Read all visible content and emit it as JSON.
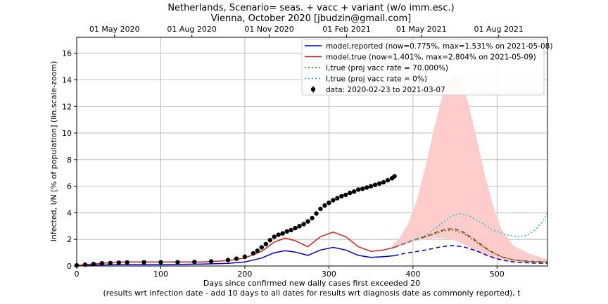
{
  "chart_data": {
    "type": "line",
    "title": "Netherlands, Scenario= seas. + vacc + variant (w/o imm.esc.)",
    "subtitle": "Vienna, October 2020 [jbudzin@gmail.com]",
    "xlabel": "Days since confirmed new daily cases first exceeded 20",
    "xlabel2": "(results wrt infection date - add 10 days to all dates for results wrt diagnosis date as commonly reported), t",
    "ylabel": "Infected, I/N [% of population] (lin.scale-zoom)",
    "xlim": [
      0,
      560
    ],
    "ylim": [
      0,
      17.2
    ],
    "x_ticks": [
      0,
      100,
      200,
      300,
      400,
      500
    ],
    "y_ticks": [
      0,
      2,
      4,
      6,
      8,
      10,
      12,
      14,
      16
    ],
    "top_axis": {
      "ticks": [
        {
          "x": 45,
          "label": "01 May 2020"
        },
        {
          "x": 137,
          "label": "01 Aug 2020"
        },
        {
          "x": 229,
          "label": "01 Nov 2020"
        },
        {
          "x": 321,
          "label": "01 Feb 2021"
        },
        {
          "x": 410,
          "label": "01 May 2021"
        },
        {
          "x": 502,
          "label": "01 Aug 2021"
        }
      ]
    },
    "grid": true,
    "legend_position": "top-right",
    "legend": [
      {
        "label": "model,reported (now=0.775%, max=1.531% on 2021-05-08)",
        "color": "#0000cc",
        "style": "solid"
      },
      {
        "label": "model,true (now=1.401%, max=2.804% on 2021-05-09)",
        "color": "#d62020",
        "style": "solid"
      },
      {
        "label": "I,true (proj vacc rate = 70.000%)",
        "color": "#00a000",
        "style": "dotted"
      },
      {
        "label": "I,true (proj vacc rate = 0%)",
        "color": "#17becf",
        "style": "dotted"
      },
      {
        "label": "data: 2020-02-23 to 2021-03-07",
        "color": "#000000",
        "style": "marker"
      }
    ],
    "band": {
      "color": "#ffcccc",
      "x": [
        375,
        385,
        395,
        405,
        415,
        425,
        435,
        445,
        450,
        455,
        465,
        475,
        485,
        495,
        505,
        520,
        540,
        560
      ],
      "upper": [
        1.5,
        2.2,
        3.3,
        5.0,
        7.5,
        10.3,
        12.8,
        14.1,
        14.3,
        14.0,
        12.5,
        9.8,
        7.0,
        4.6,
        2.8,
        1.5,
        0.9,
        0.5
      ],
      "lower": [
        1.3,
        1.5,
        1.7,
        1.9,
        2.0,
        2.1,
        2.1,
        2.0,
        1.9,
        1.8,
        1.5,
        1.1,
        0.8,
        0.55,
        0.4,
        0.3,
        0.25,
        0.2
      ]
    },
    "series": [
      {
        "key": "reported_hist",
        "color": "#0000cc",
        "style": "solid",
        "x": [
          0,
          50,
          100,
          150,
          180,
          200,
          220,
          235,
          248,
          260,
          275,
          290,
          305,
          320,
          335,
          350,
          365,
          378
        ],
        "y": [
          0.05,
          0.1,
          0.1,
          0.15,
          0.2,
          0.3,
          0.6,
          1.0,
          1.15,
          1.05,
          0.8,
          1.2,
          1.4,
          1.2,
          0.8,
          0.65,
          0.7,
          0.775
        ]
      },
      {
        "key": "reported_proj",
        "color": "#0000cc",
        "style": "dashed",
        "x": [
          378,
          390,
          400,
          415,
          430,
          440,
          448,
          460,
          475,
          490,
          505,
          520,
          540,
          560
        ],
        "y": [
          0.775,
          0.95,
          1.05,
          1.2,
          1.4,
          1.5,
          1.531,
          1.45,
          1.15,
          0.75,
          0.45,
          0.3,
          0.22,
          0.2
        ]
      },
      {
        "key": "true_hist",
        "color": "#d62020",
        "style": "solid",
        "x": [
          0,
          30,
          50,
          100,
          150,
          180,
          200,
          220,
          235,
          248,
          260,
          275,
          290,
          305,
          320,
          335,
          350,
          365,
          378
        ],
        "y": [
          0.05,
          0.2,
          0.3,
          0.3,
          0.3,
          0.4,
          0.6,
          1.1,
          1.8,
          2.1,
          1.9,
          1.45,
          2.2,
          2.55,
          2.2,
          1.45,
          1.1,
          1.2,
          1.401
        ]
      },
      {
        "key": "true_proj",
        "color": "#d62020",
        "style": "dashed",
        "x": [
          378,
          390,
          400,
          415,
          430,
          440,
          449,
          460,
          475,
          490,
          505,
          520,
          540,
          560
        ],
        "y": [
          1.401,
          1.7,
          1.95,
          2.2,
          2.6,
          2.78,
          2.804,
          2.55,
          1.9,
          1.2,
          0.7,
          0.45,
          0.35,
          0.3
        ]
      },
      {
        "key": "vacc70",
        "color": "#00a000",
        "style": "dotted",
        "x": [
          378,
          390,
          400,
          415,
          430,
          440,
          448,
          460,
          475,
          490,
          505,
          520,
          540,
          560
        ],
        "y": [
          1.45,
          1.7,
          1.95,
          2.2,
          2.5,
          2.68,
          2.7,
          2.45,
          1.8,
          1.15,
          0.7,
          0.45,
          0.32,
          0.3
        ]
      },
      {
        "key": "vacc0",
        "color": "#17becf",
        "style": "dotted",
        "x": [
          378,
          390,
          400,
          415,
          430,
          445,
          455,
          465,
          480,
          495,
          510,
          525,
          535,
          545,
          555,
          560
        ],
        "y": [
          1.45,
          1.7,
          1.95,
          2.3,
          3.0,
          3.7,
          3.95,
          3.85,
          3.3,
          2.7,
          2.35,
          2.2,
          2.3,
          2.7,
          3.4,
          4.0
        ]
      }
    ],
    "data_points": {
      "color": "#000000",
      "x": [
        0,
        10,
        20,
        30,
        40,
        50,
        60,
        80,
        100,
        120,
        140,
        160,
        180,
        190,
        200,
        210,
        215,
        220,
        225,
        230,
        235,
        240,
        245,
        250,
        255,
        260,
        265,
        270,
        275,
        280,
        285,
        290,
        295,
        300,
        305,
        310,
        315,
        320,
        325,
        330,
        335,
        340,
        345,
        350,
        355,
        360,
        365,
        370,
        375,
        378
      ],
      "y": [
        0.05,
        0.1,
        0.15,
        0.2,
        0.22,
        0.25,
        0.27,
        0.28,
        0.28,
        0.28,
        0.3,
        0.35,
        0.45,
        0.55,
        0.7,
        0.95,
        1.15,
        1.4,
        1.65,
        1.95,
        2.2,
        2.35,
        2.45,
        2.6,
        2.7,
        2.85,
        3.0,
        3.15,
        3.35,
        3.6,
        3.95,
        4.3,
        4.55,
        4.75,
        4.95,
        5.1,
        5.25,
        5.35,
        5.5,
        5.6,
        5.75,
        5.8,
        5.9,
        6.0,
        6.1,
        6.2,
        6.3,
        6.45,
        6.6,
        6.75
      ]
    }
  }
}
